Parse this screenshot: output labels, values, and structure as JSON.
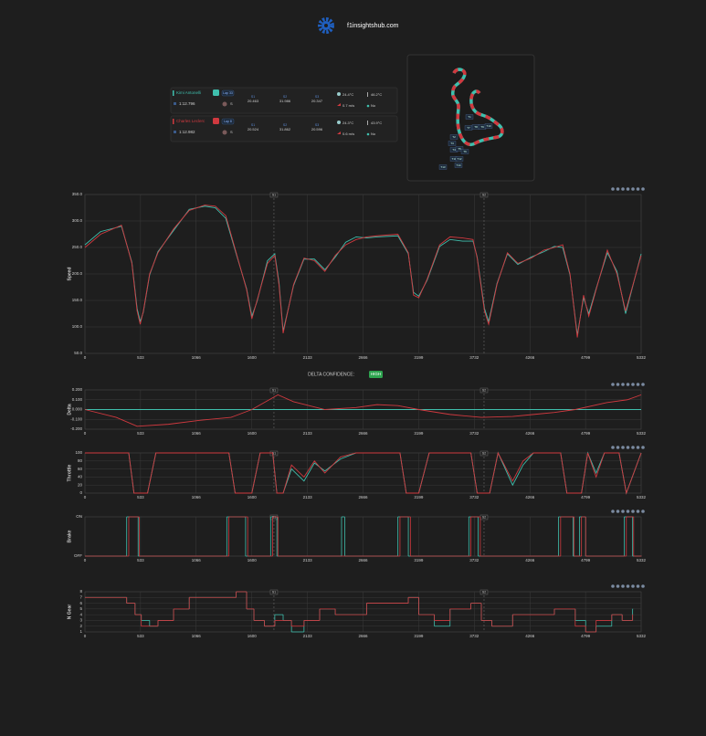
{
  "header": {
    "site": "f1insightshub.com"
  },
  "sector_labels": [
    "S1",
    "S2",
    "S3"
  ],
  "drivers": [
    {
      "name": "Kimi Antonelli",
      "color": "#3fbfad",
      "lap": "Lap 33",
      "lap_time": "1:12.796",
      "tyre": "S",
      "sectors": [
        "20.463",
        "31.986",
        "20.347"
      ],
      "air_temp": "24.4°C",
      "track_temp": "46.2°C",
      "wind": "0.7 m/s",
      "rain": "No"
    },
    {
      "name": "Charles Leclerc",
      "color": "#d0393f",
      "lap": "Lap 8",
      "lap_time": "1:12.982",
      "tyre": "S",
      "sectors": [
        "20.524",
        "31.862",
        "20.596"
      ],
      "air_temp": "24.3°C",
      "track_temp": "43.9°C",
      "wind": "0.6 m/s",
      "rain": "No"
    }
  ],
  "track_map": {
    "turns": [
      "T1",
      "T2",
      "T3",
      "T4",
      "T5",
      "T6",
      "T7",
      "T8",
      "T9",
      "T10",
      "T11",
      "T12",
      "T13",
      "T14"
    ]
  },
  "delta_confidence": {
    "label": "DELTA CONFIDENCE:",
    "value": "HIGH"
  },
  "chart_data": [
    {
      "type": "line",
      "y_label": "Speed",
      "xlim": [
        0,
        5332
      ],
      "ylim": [
        50,
        350
      ],
      "grid": true,
      "xticks": [
        0,
        533,
        1066,
        1600,
        2133,
        2666,
        3199,
        3732,
        4266,
        4799,
        5332
      ],
      "yticks": [
        {
          "value": 50,
          "label": "50.0"
        },
        {
          "value": 100,
          "label": "100.0"
        },
        {
          "value": 150,
          "label": "150.0"
        },
        {
          "value": 200,
          "label": "200.0"
        },
        {
          "value": 250,
          "label": "250.0"
        },
        {
          "value": 300,
          "label": "300.0"
        },
        {
          "value": 350,
          "label": "350.0"
        }
      ],
      "markers": [
        {
          "x": 1812,
          "label": "S1"
        },
        {
          "x": 3826,
          "label": "S2"
        }
      ],
      "x": [
        0,
        150,
        350,
        450,
        500,
        530,
        560,
        620,
        700,
        850,
        1000,
        1150,
        1250,
        1350,
        1450,
        1550,
        1600,
        1650,
        1750,
        1820,
        1860,
        1900,
        2000,
        2100,
        2200,
        2300,
        2400,
        2500,
        2600,
        2700,
        2800,
        3000,
        3100,
        3150,
        3200,
        3280,
        3400,
        3500,
        3620,
        3720,
        3760,
        3830,
        3870,
        3950,
        4050,
        4150,
        4280,
        4400,
        4500,
        4580,
        4650,
        4720,
        4780,
        4830,
        4900,
        5008,
        5100,
        5183,
        5332
      ],
      "series": [
        {
          "name": "Kimi Antonelli",
          "color": "#3fbfad",
          "values": [
            255,
            280,
            290,
            222,
            135,
            110,
            128,
            198,
            242,
            282,
            322,
            328,
            325,
            305,
            238,
            172,
            120,
            148,
            225,
            238,
            185,
            92,
            178,
            228,
            228,
            208,
            232,
            260,
            270,
            268,
            270,
            272,
            238,
            165,
            158,
            188,
            252,
            265,
            262,
            262,
            232,
            135,
            110,
            182,
            238,
            218,
            232,
            242,
            252,
            250,
            198,
            85,
            155,
            125,
            172,
            240,
            205,
            125,
            238
          ]
        },
        {
          "name": "Charles Leclerc",
          "color": "#d0393f",
          "values": [
            250,
            275,
            292,
            220,
            130,
            105,
            130,
            200,
            240,
            285,
            320,
            330,
            328,
            310,
            240,
            170,
            115,
            150,
            220,
            235,
            180,
            88,
            180,
            230,
            225,
            205,
            235,
            255,
            265,
            270,
            272,
            275,
            240,
            160,
            155,
            190,
            255,
            270,
            268,
            265,
            230,
            130,
            105,
            180,
            240,
            220,
            230,
            245,
            250,
            255,
            200,
            80,
            160,
            120,
            170,
            245,
            200,
            130,
            235
          ]
        }
      ]
    },
    {
      "type": "line",
      "y_label": "Delta",
      "xlim": [
        0,
        5332
      ],
      "ylim": [
        -0.2,
        0.2
      ],
      "grid": true,
      "xticks": [
        0,
        533,
        1066,
        1600,
        2133,
        2666,
        3199,
        3732,
        4266,
        4799,
        5332
      ],
      "yticks": [
        {
          "value": -0.2,
          "label": "-0.200"
        },
        {
          "value": -0.1,
          "label": "-0.100"
        },
        {
          "value": 0,
          "label": "0.000"
        },
        {
          "value": 0.1,
          "label": "0.100"
        },
        {
          "value": 0.2,
          "label": "0.200"
        }
      ],
      "markers": [
        {
          "x": 1812,
          "label": "S1"
        },
        {
          "x": 3826,
          "label": "S2"
        }
      ],
      "x": [
        0,
        300,
        500,
        800,
        1100,
        1400,
        1600,
        1850,
        2000,
        2300,
        2600,
        2800,
        3000,
        3200,
        3500,
        3800,
        4100,
        4300,
        4500,
        4700,
        5000,
        5200,
        5332
      ],
      "series": [
        {
          "name": "Kimi Antonelli",
          "color": "#3fbfad",
          "values": [
            0,
            0,
            0,
            0,
            0,
            0,
            0,
            0,
            0,
            0,
            0,
            0,
            0,
            0,
            0,
            0,
            0,
            0,
            0,
            0,
            0,
            0,
            0
          ]
        },
        {
          "name": "Charles Leclerc",
          "color": "#d0393f",
          "values": [
            0,
            -0.08,
            -0.17,
            -0.15,
            -0.11,
            -0.08,
            0,
            0.15,
            0.08,
            0,
            0.02,
            0.05,
            0.04,
            0,
            -0.05,
            -0.08,
            -0.07,
            -0.05,
            -0.03,
            0,
            0.07,
            0.1,
            0.15
          ]
        }
      ]
    },
    {
      "type": "line",
      "y_label": "Throttle",
      "xlim": [
        0,
        5332
      ],
      "ylim": [
        0,
        100
      ],
      "grid": true,
      "xticks": [
        0,
        533,
        1066,
        1600,
        2133,
        2666,
        3199,
        3732,
        4266,
        4799,
        5332
      ],
      "yticks": [
        0,
        20,
        40,
        60,
        80,
        100
      ],
      "markers": [
        {
          "x": 1812,
          "label": "S1"
        },
        {
          "x": 3826,
          "label": "S2"
        }
      ],
      "x": [
        0,
        420,
        470,
        600,
        680,
        1380,
        1440,
        1600,
        1680,
        1800,
        1840,
        1900,
        1980,
        2100,
        2200,
        2300,
        2450,
        2600,
        2700,
        3020,
        3080,
        3200,
        3300,
        3700,
        3760,
        3880,
        3960,
        4100,
        4200,
        4300,
        4400,
        4560,
        4620,
        4760,
        4820,
        4900,
        4980,
        5120,
        5190,
        5332
      ],
      "series": [
        {
          "name": "Kimi Antonelli",
          "color": "#3fbfad",
          "values": [
            100,
            100,
            0,
            0,
            100,
            100,
            0,
            0,
            100,
            100,
            0,
            0,
            60,
            30,
            75,
            55,
            85,
            100,
            100,
            100,
            0,
            0,
            100,
            100,
            0,
            0,
            100,
            20,
            70,
            100,
            100,
            100,
            0,
            0,
            100,
            50,
            100,
            100,
            0,
            100
          ]
        },
        {
          "name": "Charles Leclerc",
          "color": "#d0393f",
          "values": [
            100,
            100,
            0,
            0,
            100,
            100,
            0,
            0,
            100,
            100,
            0,
            0,
            70,
            40,
            80,
            50,
            90,
            100,
            100,
            100,
            0,
            0,
            100,
            100,
            0,
            0,
            100,
            30,
            80,
            100,
            100,
            100,
            0,
            0,
            100,
            40,
            100,
            100,
            0,
            100
          ]
        }
      ]
    },
    {
      "type": "step",
      "y_label": "Brake",
      "xlim": [
        0,
        5332
      ],
      "ylim": [
        0,
        1
      ],
      "grid": true,
      "xticks": [
        0,
        533,
        1066,
        1600,
        2133,
        2666,
        3199,
        3732,
        4266,
        4799,
        5332
      ],
      "yticks": [
        {
          "value": 0,
          "label": "OFF"
        },
        {
          "value": 1,
          "label": "ON"
        }
      ],
      "markers": [
        {
          "x": 1812,
          "label": "S1"
        },
        {
          "x": 3826,
          "label": "S2"
        }
      ],
      "series": [
        {
          "name": "Kimi Antonelli",
          "color": "#3fbfad",
          "x": [
            0,
            400,
            510,
            1360,
            1540,
            1780,
            1840,
            2460,
            2490,
            3000,
            3100,
            3680,
            3770,
            4540,
            4680,
            4740,
            4800,
            5170,
            5250,
            5332
          ],
          "values": [
            0,
            1,
            0,
            1,
            0,
            1,
            0,
            1,
            0,
            1,
            0,
            1,
            0,
            1,
            0,
            1,
            0,
            1,
            0,
            0
          ]
        },
        {
          "name": "Charles Leclerc",
          "color": "#d0393f",
          "x": [
            0,
            420,
            520,
            1380,
            1560,
            1800,
            1850,
            3020,
            3120,
            3700,
            3790,
            4560,
            4690,
            4760,
            4800,
            5190,
            5260,
            5332
          ],
          "values": [
            0,
            1,
            0,
            1,
            0,
            1,
            0,
            1,
            0,
            1,
            0,
            1,
            0,
            1,
            0,
            1,
            0,
            0
          ]
        }
      ]
    },
    {
      "type": "step",
      "y_label": "N Gear",
      "xlim": [
        0,
        5332
      ],
      "ylim": [
        1,
        8
      ],
      "grid": true,
      "xticks": [
        0,
        533,
        1066,
        1600,
        2133,
        2666,
        3199,
        3732,
        4266,
        4799,
        5332
      ],
      "yticks": [
        1,
        2,
        3,
        4,
        5,
        6,
        7,
        8
      ],
      "markers": [
        {
          "x": 1812,
          "label": "S1"
        },
        {
          "x": 3826,
          "label": "S2"
        }
      ],
      "x": [
        0,
        400,
        480,
        540,
        620,
        700,
        850,
        1000,
        1450,
        1550,
        1620,
        1720,
        1820,
        1900,
        1980,
        2100,
        2250,
        2400,
        2700,
        3100,
        3200,
        3350,
        3500,
        3700,
        3800,
        3900,
        4100,
        4500,
        4700,
        4800,
        4900,
        5050,
        5150,
        5250
      ],
      "series": [
        {
          "name": "Kimi Antonelli",
          "color": "#3fbfad",
          "values": [
            7,
            6,
            4,
            3,
            2,
            3,
            5,
            7,
            8,
            5,
            3,
            2,
            4,
            3,
            1,
            3,
            5,
            4,
            6,
            7,
            4,
            2,
            5,
            6,
            3,
            2,
            4,
            5,
            3,
            1,
            2,
            4,
            3,
            5
          ]
        },
        {
          "name": "Charles Leclerc",
          "color": "#d0393f",
          "values": [
            7,
            6,
            4,
            2,
            2,
            3,
            5,
            7,
            8,
            5,
            3,
            2,
            3,
            3,
            2,
            3,
            5,
            4,
            6,
            7,
            4,
            3,
            5,
            6,
            3,
            2,
            4,
            5,
            2,
            1,
            3,
            4,
            3,
            4
          ]
        }
      ]
    }
  ]
}
